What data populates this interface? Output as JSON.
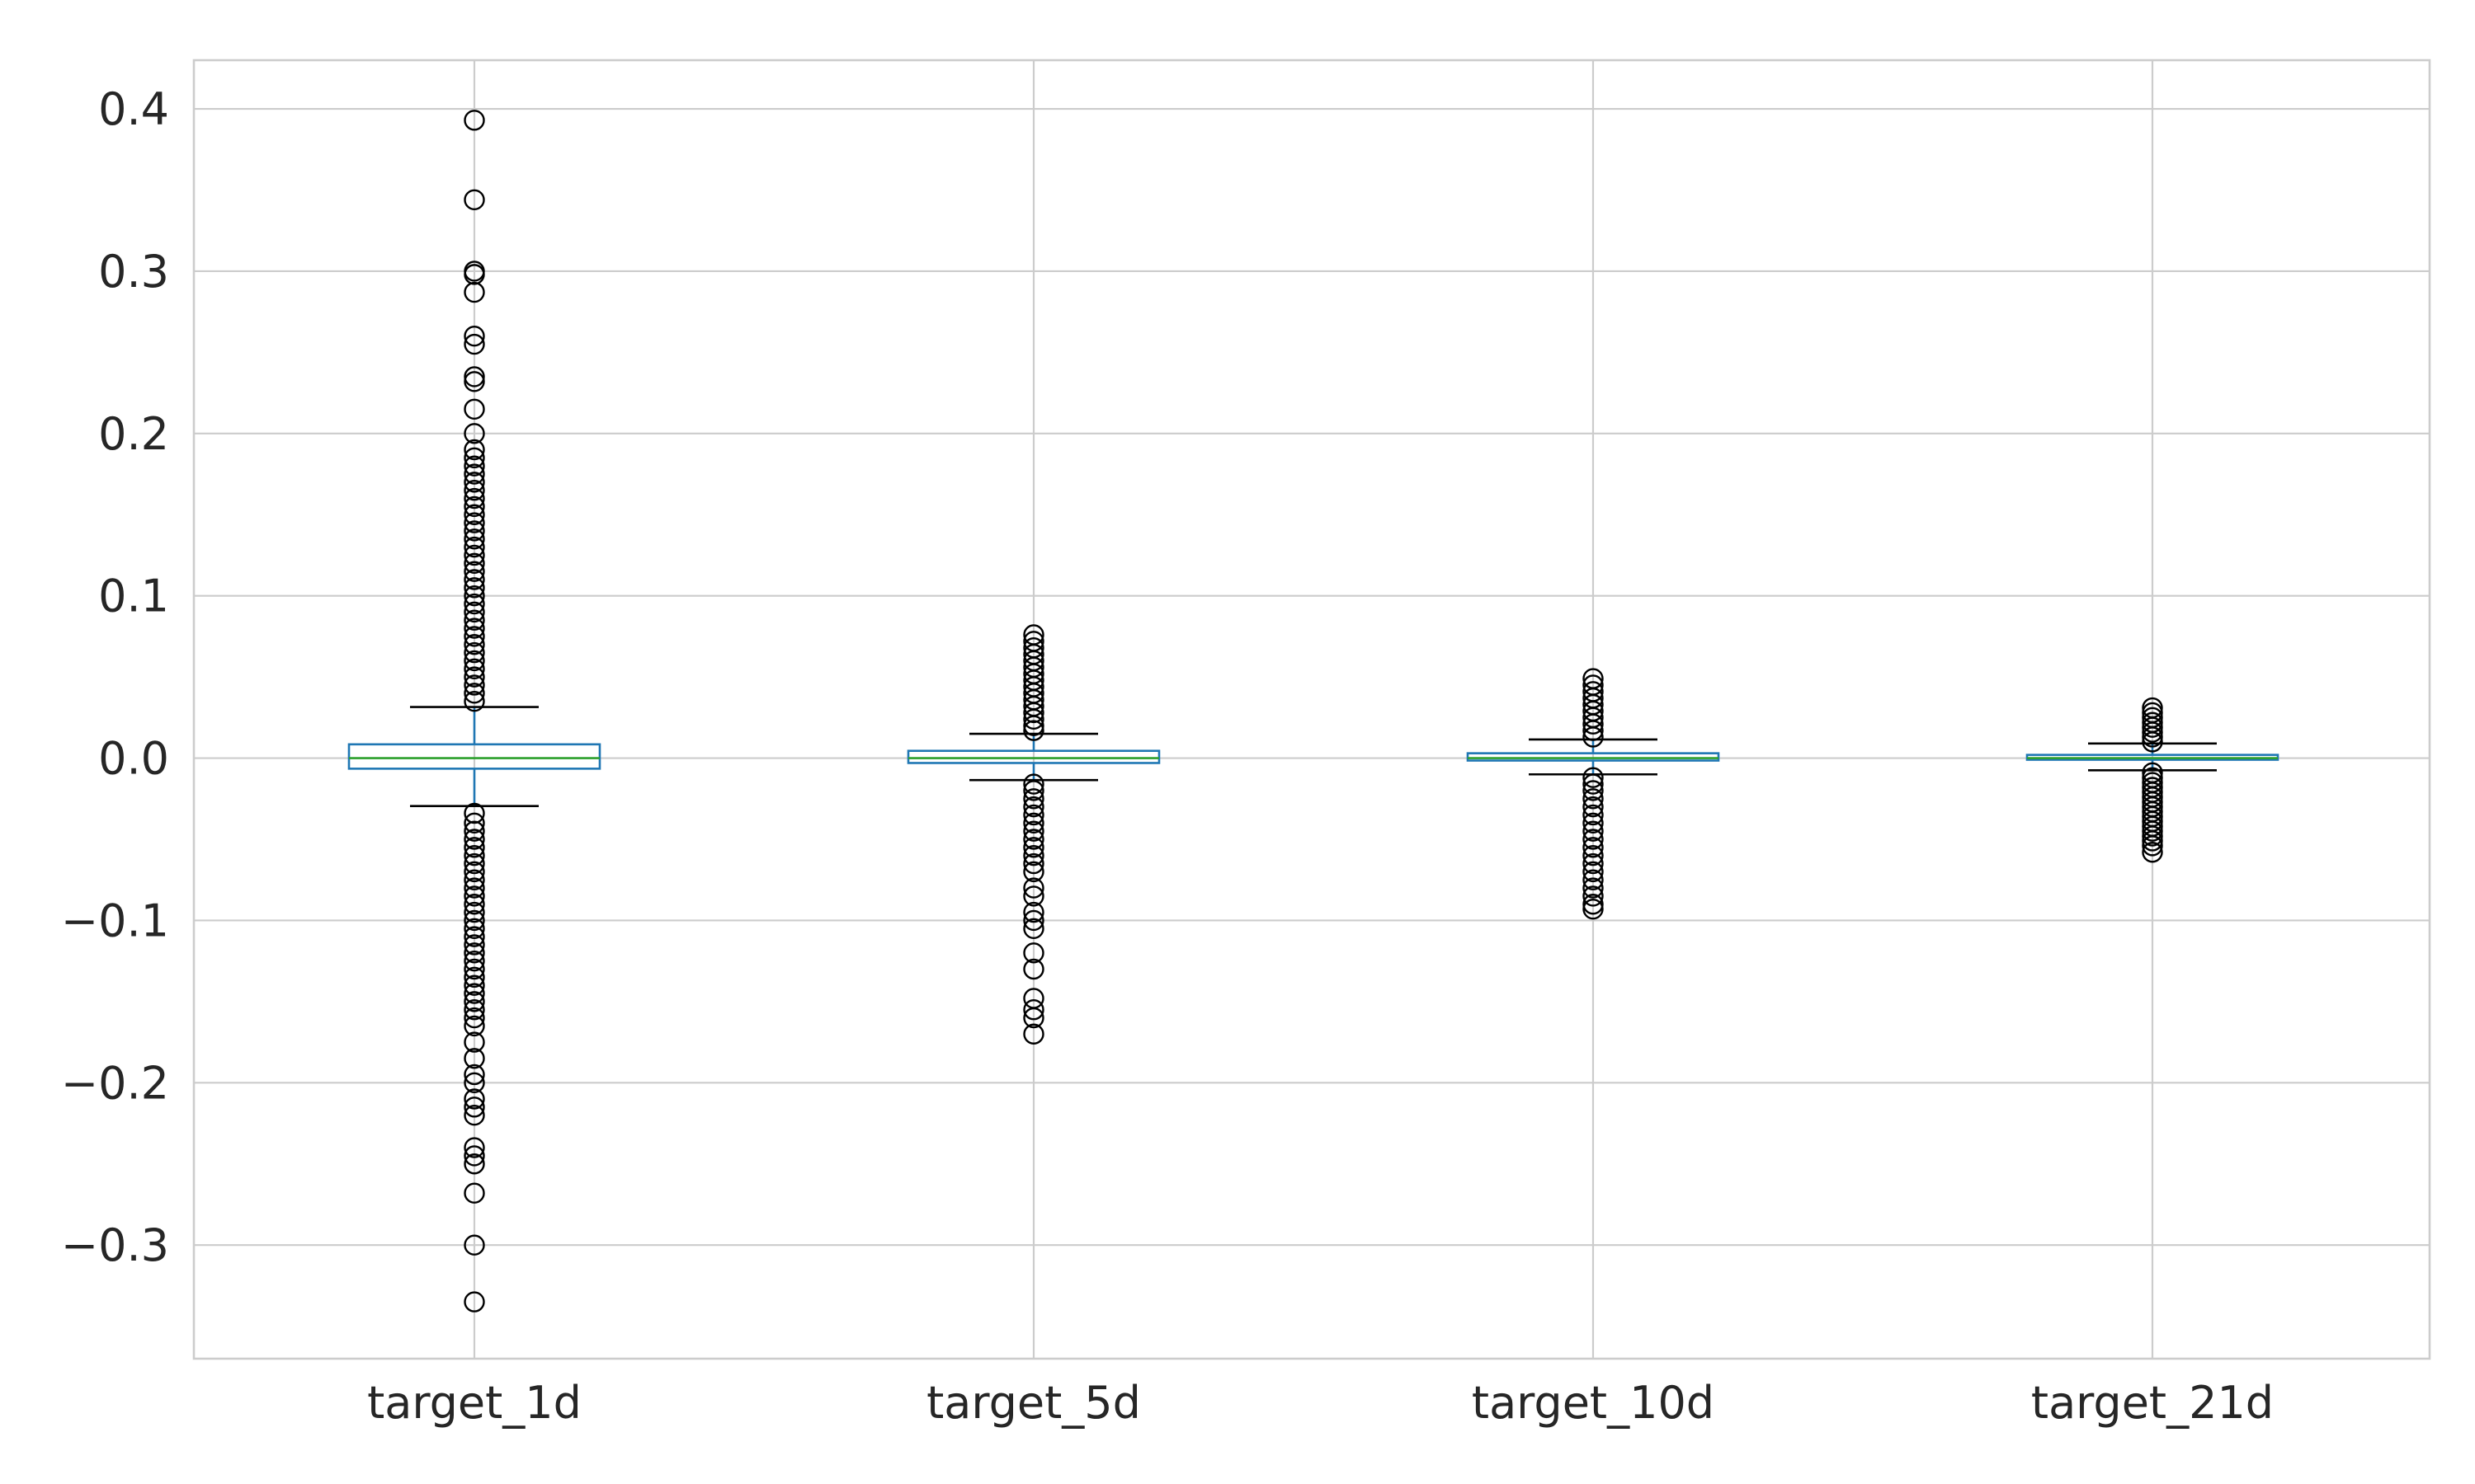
{
  "chart_data": {
    "type": "box",
    "title": "",
    "xlabel": "",
    "ylabel": "",
    "ylim": [
      -0.37,
      0.43
    ],
    "yticks": [
      -0.3,
      -0.2,
      -0.1,
      0.0,
      0.1,
      0.2,
      0.3,
      0.4
    ],
    "ytick_labels": [
      "−0.3",
      "−0.2",
      "−0.1",
      "0.0",
      "0.1",
      "0.2",
      "0.3",
      "0.4"
    ],
    "grid": true,
    "colors": {
      "box": "#1f77b4",
      "median": "#2ca02c",
      "cap": "#000000",
      "flier": "#000000",
      "grid": "#cccccc"
    },
    "categories": [
      "target_1d",
      "target_5d",
      "target_10d",
      "target_21d"
    ],
    "series": [
      {
        "category": "target_1d",
        "q1": -0.0065,
        "median": 0.0,
        "q3": 0.0085,
        "whisker_low": -0.0295,
        "whisker_high": 0.0315,
        "fliers_high": [
          0.393,
          0.344,
          0.3,
          0.298,
          0.287,
          0.26,
          0.255,
          0.235,
          0.232,
          0.215,
          0.2,
          0.19,
          0.185,
          0.18,
          0.175,
          0.17,
          0.165,
          0.16,
          0.155,
          0.15,
          0.145,
          0.14,
          0.135,
          0.13,
          0.125,
          0.12,
          0.115,
          0.11,
          0.105,
          0.1,
          0.095,
          0.09,
          0.085,
          0.08,
          0.075,
          0.07,
          0.065,
          0.06,
          0.055,
          0.05,
          0.045,
          0.04,
          0.035
        ],
        "fliers_low": [
          -0.034,
          -0.04,
          -0.045,
          -0.05,
          -0.055,
          -0.06,
          -0.065,
          -0.07,
          -0.075,
          -0.08,
          -0.085,
          -0.09,
          -0.095,
          -0.1,
          -0.105,
          -0.11,
          -0.115,
          -0.12,
          -0.125,
          -0.13,
          -0.135,
          -0.14,
          -0.145,
          -0.15,
          -0.155,
          -0.16,
          -0.165,
          -0.175,
          -0.185,
          -0.195,
          -0.2,
          -0.21,
          -0.215,
          -0.22,
          -0.24,
          -0.245,
          -0.25,
          -0.268,
          -0.3,
          -0.335
        ]
      },
      {
        "category": "target_5d",
        "q1": -0.003,
        "median": 0.0,
        "q3": 0.0045,
        "whisker_low": -0.0135,
        "whisker_high": 0.015,
        "fliers_high": [
          0.076,
          0.072,
          0.068,
          0.064,
          0.06,
          0.056,
          0.052,
          0.048,
          0.044,
          0.04,
          0.036,
          0.032,
          0.028,
          0.024,
          0.02,
          0.017
        ],
        "fliers_low": [
          -0.016,
          -0.02,
          -0.025,
          -0.03,
          -0.035,
          -0.04,
          -0.045,
          -0.05,
          -0.055,
          -0.06,
          -0.065,
          -0.07,
          -0.08,
          -0.085,
          -0.095,
          -0.1,
          -0.105,
          -0.12,
          -0.13,
          -0.148,
          -0.155,
          -0.16,
          -0.17
        ]
      },
      {
        "category": "target_10d",
        "q1": -0.0015,
        "median": 0.0,
        "q3": 0.003,
        "whisker_low": -0.01,
        "whisker_high": 0.0115,
        "fliers_high": [
          0.049,
          0.045,
          0.041,
          0.037,
          0.033,
          0.029,
          0.025,
          0.021,
          0.017,
          0.013
        ],
        "fliers_low": [
          -0.012,
          -0.016,
          -0.02,
          -0.025,
          -0.03,
          -0.035,
          -0.04,
          -0.045,
          -0.05,
          -0.055,
          -0.06,
          -0.065,
          -0.07,
          -0.075,
          -0.08,
          -0.085,
          -0.09,
          -0.093
        ]
      },
      {
        "category": "target_21d",
        "q1": -0.001,
        "median": 0.0,
        "q3": 0.002,
        "whisker_low": -0.0075,
        "whisker_high": 0.009,
        "fliers_high": [
          0.031,
          0.028,
          0.025,
          0.022,
          0.019,
          0.016,
          0.013,
          0.01
        ],
        "fliers_low": [
          -0.009,
          -0.012,
          -0.015,
          -0.018,
          -0.021,
          -0.024,
          -0.027,
          -0.03,
          -0.033,
          -0.036,
          -0.039,
          -0.042,
          -0.045,
          -0.048,
          -0.051,
          -0.054,
          -0.058
        ]
      }
    ]
  }
}
